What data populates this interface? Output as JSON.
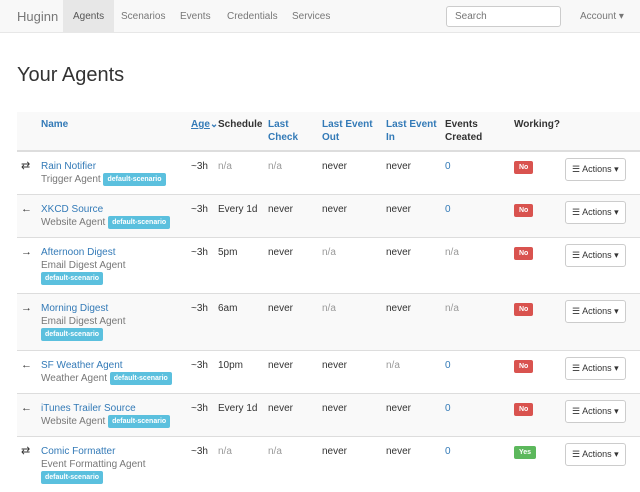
{
  "nav": {
    "brand": "Huginn",
    "items": [
      "Agents",
      "Scenarios",
      "Events",
      "Credentials",
      "Services"
    ],
    "search_placeholder": "Search",
    "account": "Account ▾"
  },
  "page_title": "Your Agents",
  "table": {
    "headers": {
      "name": "Name",
      "age": "Age",
      "sort_icon": "⌄",
      "schedule": "Schedule",
      "last_check": "Last Check",
      "last_event_out": "Last Event Out",
      "last_event_in": "Last Event In",
      "events_created": "Events Created",
      "working": "Working?"
    },
    "rows": [
      {
        "icon": "⇄",
        "name": "Rain Notifier",
        "type": "Trigger Agent",
        "scenario": "default-scenario",
        "age": "~3h",
        "schedule": "n/a",
        "last_check": "n/a",
        "out": "never",
        "in": "never",
        "events": "0",
        "working": "No",
        "actions": "Actions ▾"
      },
      {
        "icon": "←",
        "name": "XKCD Source",
        "type": "Website Agent",
        "scenario": "default-scenario",
        "age": "~3h",
        "schedule": "Every 1d",
        "last_check": "never",
        "out": "never",
        "in": "never",
        "events": "0",
        "working": "No",
        "actions": "Actions ▾"
      },
      {
        "icon": "→",
        "name": "Afternoon Digest",
        "type": "Email Digest Agent",
        "scenario": "default-scenario",
        "age": "~3h",
        "schedule": "5pm",
        "last_check": "never",
        "out": "n/a",
        "in": "never",
        "events": "n/a",
        "working": "No",
        "actions": "Actions ▾"
      },
      {
        "icon": "→",
        "name": "Morning Digest",
        "type": "Email Digest Agent",
        "scenario": "default-scenario",
        "age": "~3h",
        "schedule": "6am",
        "last_check": "never",
        "out": "n/a",
        "in": "never",
        "events": "n/a",
        "working": "No",
        "actions": "Actions ▾"
      },
      {
        "icon": "←",
        "name": "SF Weather Agent",
        "type": "Weather Agent",
        "scenario": "default-scenario",
        "age": "~3h",
        "schedule": "10pm",
        "last_check": "never",
        "out": "never",
        "in": "n/a",
        "events": "0",
        "working": "No",
        "actions": "Actions ▾"
      },
      {
        "icon": "←",
        "name": "iTunes Trailer Source",
        "type": "Website Agent",
        "scenario": "default-scenario",
        "age": "~3h",
        "schedule": "Every 1d",
        "last_check": "never",
        "out": "never",
        "in": "never",
        "events": "0",
        "working": "No",
        "actions": "Actions ▾"
      },
      {
        "icon": "⇄",
        "name": "Comic Formatter",
        "type": "Event Formatting Agent",
        "scenario": "default-scenario",
        "age": "~3h",
        "schedule": "n/a",
        "last_check": "n/a",
        "out": "never",
        "in": "never",
        "events": "0",
        "working": "Yes",
        "actions": "Actions ▾"
      }
    ]
  },
  "colors": {
    "link": "#337ab7",
    "no": "#d9534f",
    "yes": "#5cb85c",
    "scenario": "#5bc0de"
  }
}
